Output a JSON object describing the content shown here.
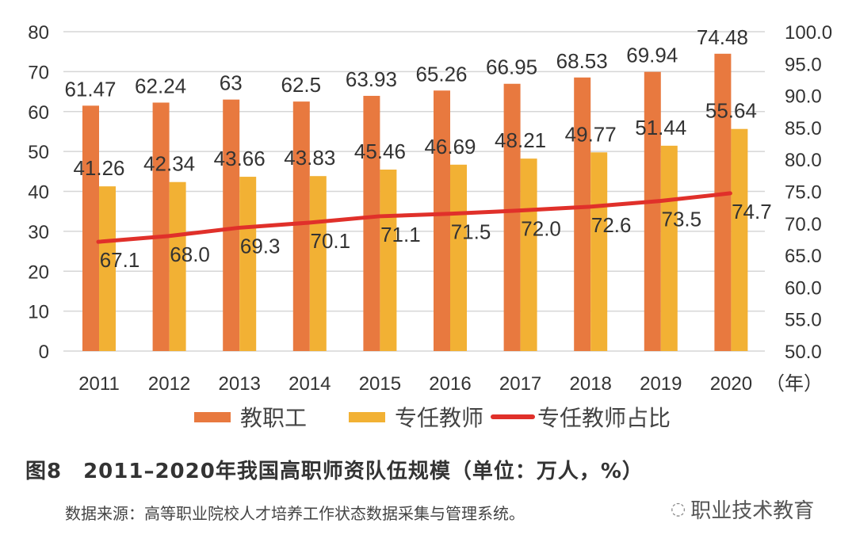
{
  "chart_data": {
    "type": "bar",
    "categories": [
      "2011",
      "2012",
      "2013",
      "2014",
      "2015",
      "2016",
      "2017",
      "2018",
      "2019",
      "2020"
    ],
    "x_unit_label": "（年）",
    "series": [
      {
        "name": "教职工",
        "type": "bar",
        "axis": "left",
        "color": "#E8793F",
        "values": [
          61.47,
          62.24,
          63,
          62.5,
          63.93,
          65.26,
          66.95,
          68.53,
          69.94,
          74.48
        ],
        "labels": [
          "61.47",
          "62.24",
          "63",
          "62.5",
          "63.93",
          "65.26",
          "66.95",
          "68.53",
          "69.94",
          "74.48"
        ]
      },
      {
        "name": "专任教师",
        "type": "bar",
        "axis": "right-bar-left",
        "color": "#F2B134",
        "values": [
          41.26,
          42.34,
          43.66,
          43.83,
          45.46,
          46.69,
          48.21,
          49.77,
          51.44,
          55.64
        ],
        "labels": [
          "41.26",
          "42.34",
          "43.66",
          "43.83",
          "45.46",
          "46.69",
          "48.21",
          "49.77",
          "51.44",
          "55.64"
        ]
      },
      {
        "name": "专任教师占比",
        "type": "line",
        "axis": "right",
        "color": "#E0302A",
        "values": [
          67.1,
          68.0,
          69.3,
          70.1,
          71.1,
          71.5,
          72.0,
          72.6,
          73.5,
          74.7
        ],
        "labels": [
          "67.1",
          "68.0",
          "69.3",
          "70.1",
          "71.1",
          "71.5",
          "72.0",
          "72.6",
          "73.5",
          "74.7"
        ]
      }
    ],
    "y_left": {
      "lim": [
        0,
        80
      ],
      "ticks": [
        "0",
        "10",
        "20",
        "30",
        "40",
        "50",
        "60",
        "70",
        "80"
      ]
    },
    "y_right": {
      "lim": [
        50,
        100
      ],
      "ticks": [
        "50.0",
        "55.0",
        "60.0",
        "65.0",
        "70.0",
        "75.0",
        "80.0",
        "85.0",
        "90.0",
        "95.0",
        "100.0"
      ]
    },
    "grid": true,
    "legend_position": "bottom"
  },
  "caption": "图8　2011–2020年我国高职师资队伍规模（单位：万人，%）",
  "source": "数据来源：高等职业院校人才培养工作状态数据采集与管理系统。",
  "watermark": "职业技术教育"
}
